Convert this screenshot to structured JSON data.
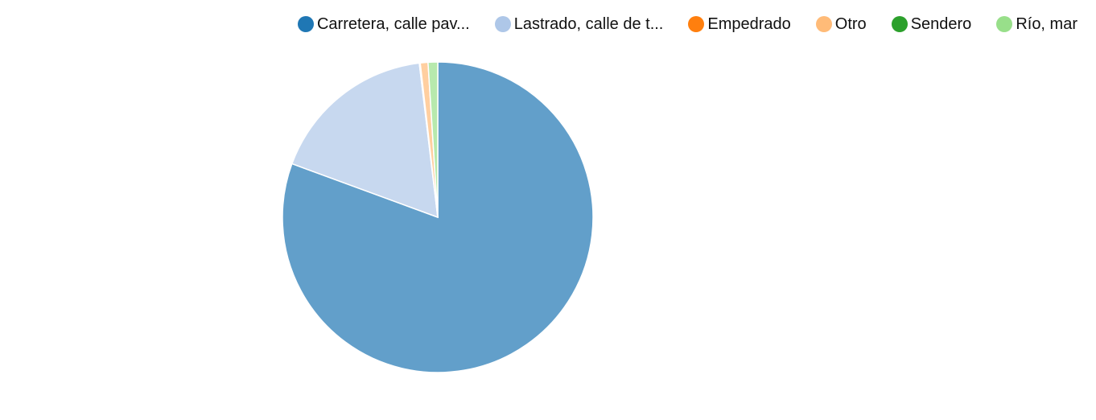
{
  "chart_data": {
    "type": "pie",
    "title": "",
    "series": [
      {
        "name": "Carretera, calle pav...",
        "value": 80.6,
        "color": "#1f77b4",
        "fill": "#629fca"
      },
      {
        "name": "Lastrado, calle de t...",
        "value": 17.5,
        "color": "#aec7e8",
        "fill": "#c7d8ef"
      },
      {
        "name": "Empedrado",
        "value": 0.1,
        "color": "#ff7f0e",
        "fill": "#ffa556"
      },
      {
        "name": "Otro",
        "value": 0.8,
        "color": "#ffbb78",
        "fill": "#ffcfa0"
      },
      {
        "name": "Sendero",
        "value": 0.0,
        "color": "#2ca02c",
        "fill": "#6bbc6b"
      },
      {
        "name": "Río, mar",
        "value": 1.0,
        "color": "#98df8a",
        "fill": "#b7e9ad"
      }
    ],
    "legend_position": "top-right"
  }
}
